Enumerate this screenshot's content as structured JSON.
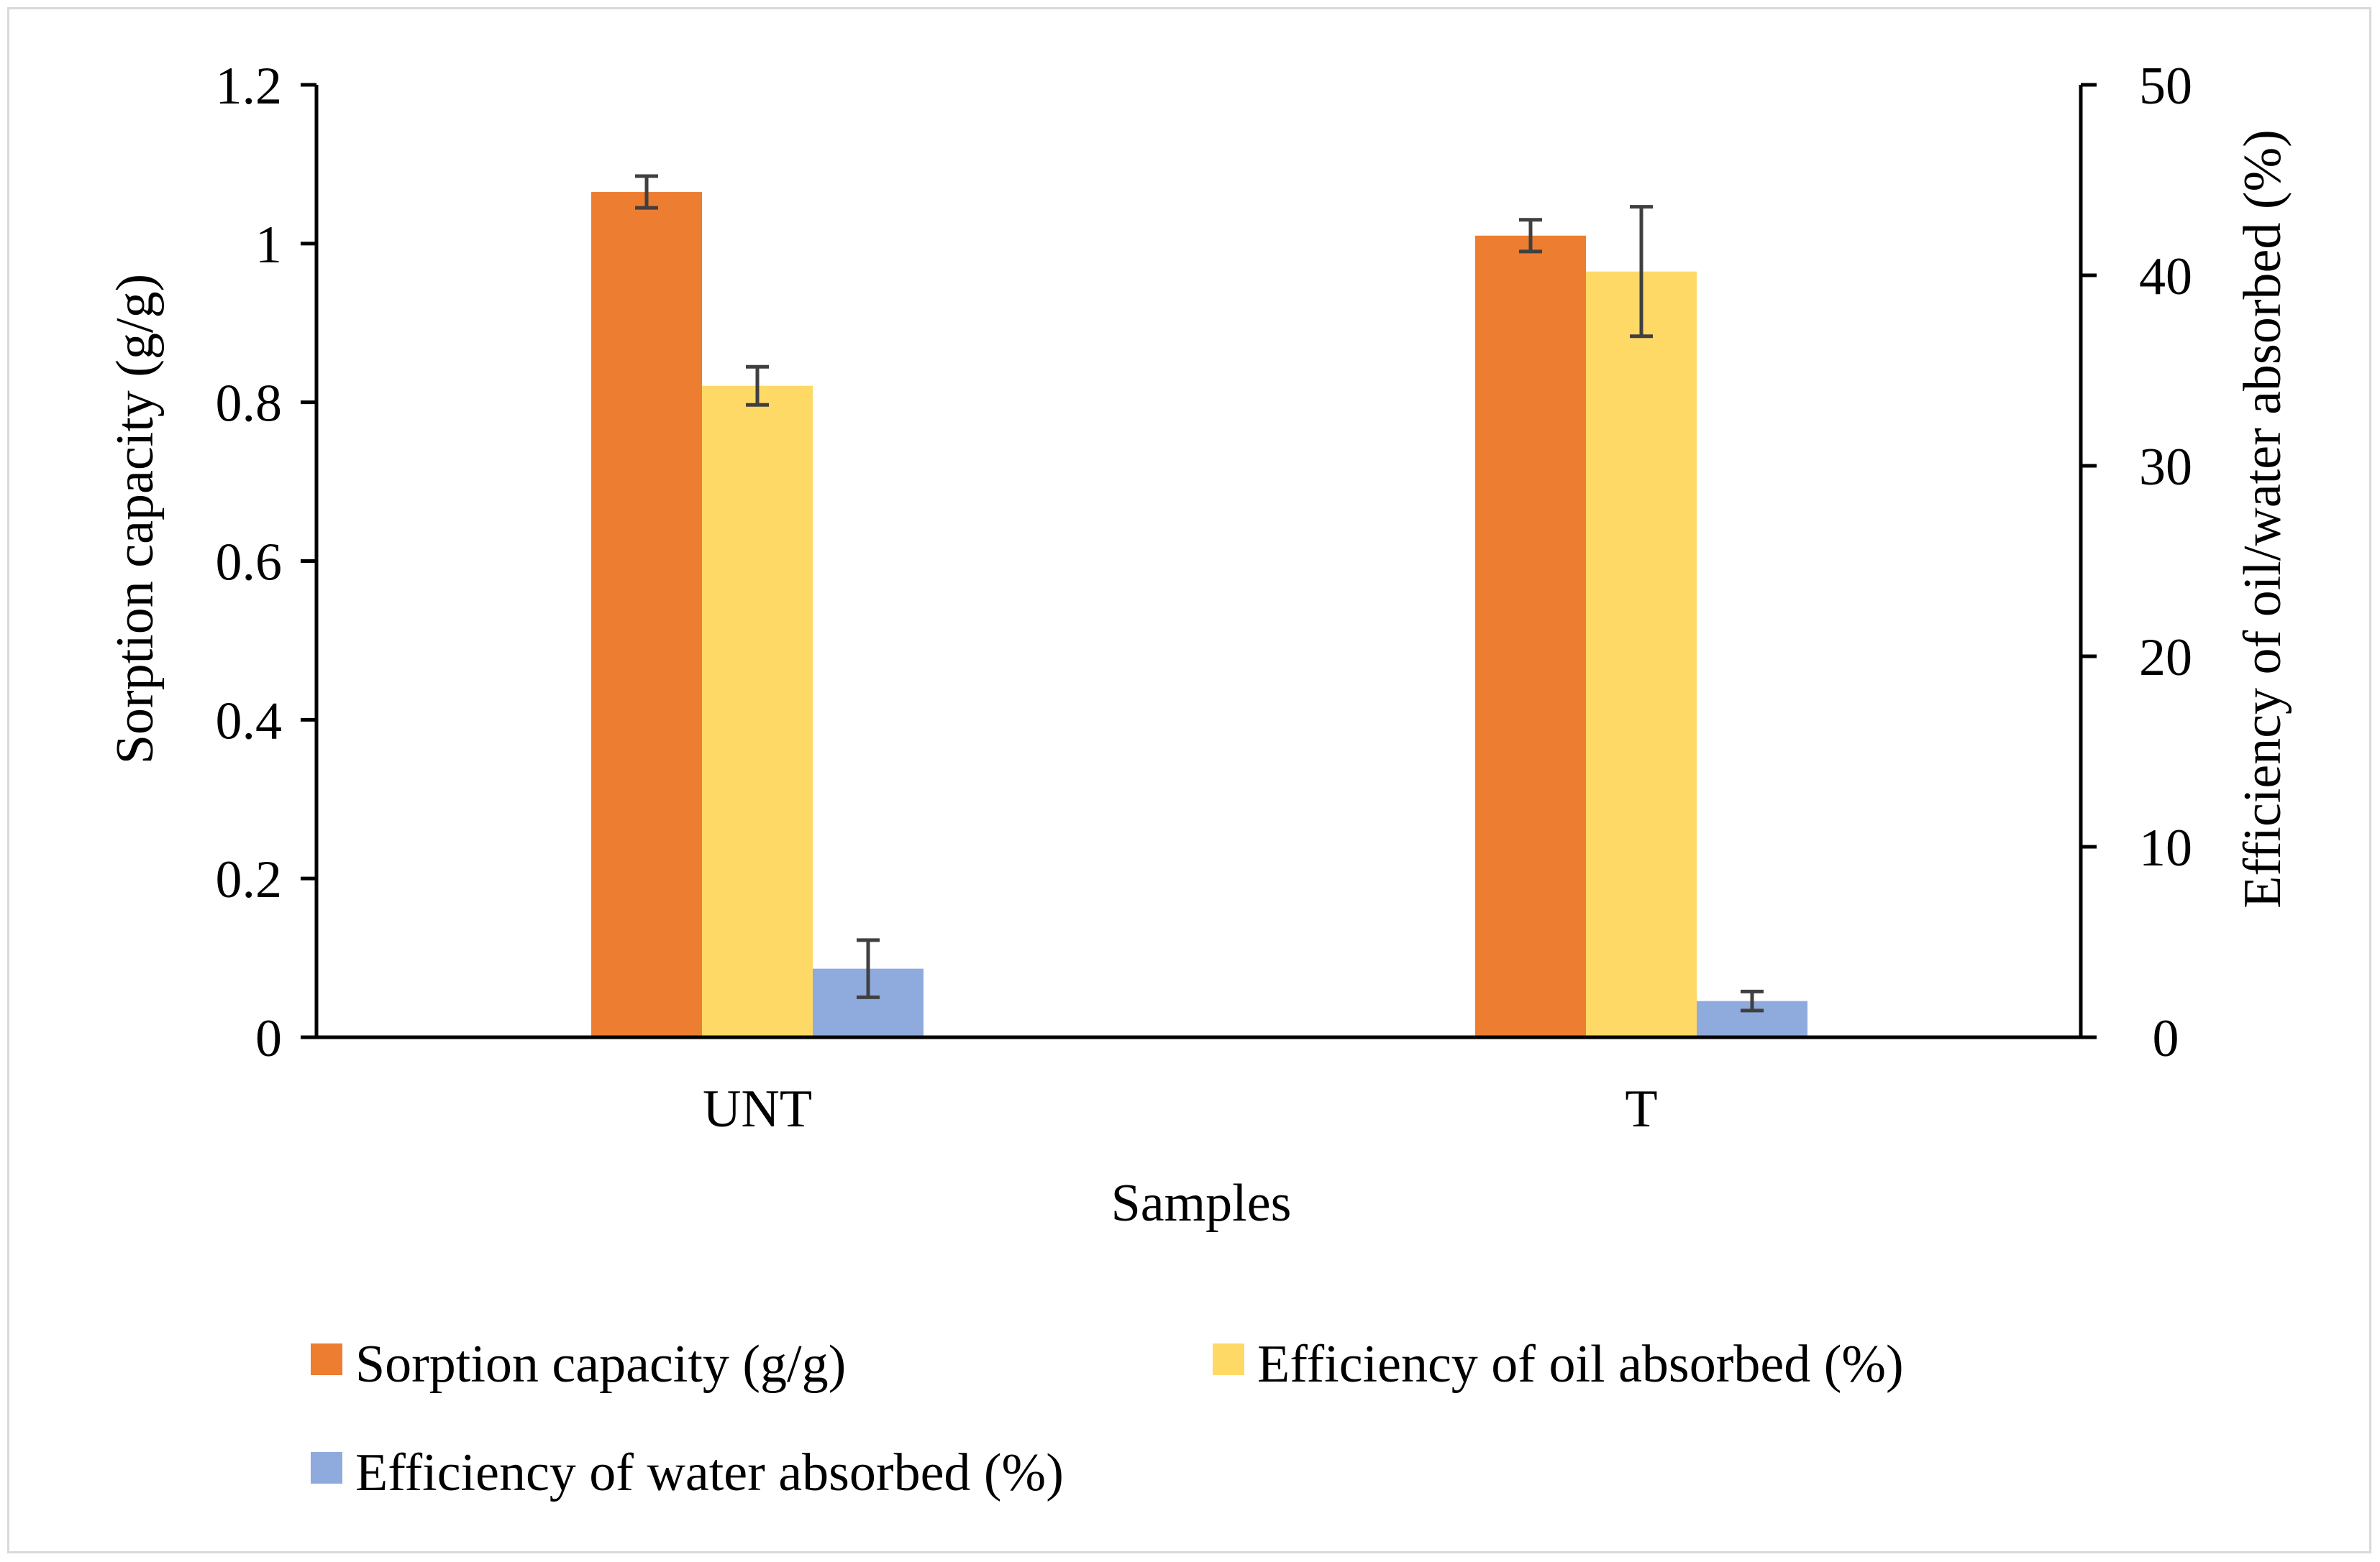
{
  "chart_data": {
    "type": "bar",
    "title": "",
    "xlabel": "Samples",
    "ylabel": "Sorption capacity (g/g)",
    "y2label": "Efficiency of oil/water absorbed (%)",
    "categories": [
      "UNT",
      "T"
    ],
    "ylim": [
      0,
      1.2
    ],
    "y2lim": [
      0,
      50
    ],
    "yticks": [
      "0",
      "0.2",
      "0.4",
      "0.6",
      "0.8",
      "1",
      "1.2"
    ],
    "y2ticks": [
      "0",
      "10",
      "20",
      "30",
      "40",
      "50"
    ],
    "grid": false,
    "legend_position": "bottom",
    "series": [
      {
        "name": "Sorption capacity (g/g)",
        "axis": "left",
        "color": "#ED7D31",
        "values": [
          1.065,
          1.01
        ],
        "errors": [
          0.02,
          0.02
        ]
      },
      {
        "name": "Efficiency of oil absorbed (%)",
        "axis": "right",
        "color": "#FFD966",
        "values": [
          34.2,
          40.2
        ],
        "errors": [
          1.0,
          3.4
        ]
      },
      {
        "name": "Efficiency of water absorbed (%)",
        "axis": "right",
        "color": "#8FAADC",
        "values": [
          3.6,
          1.9
        ],
        "errors": [
          1.5,
          0.5
        ]
      }
    ],
    "error_bar_color": "#404040",
    "axis_color": "#000000"
  }
}
